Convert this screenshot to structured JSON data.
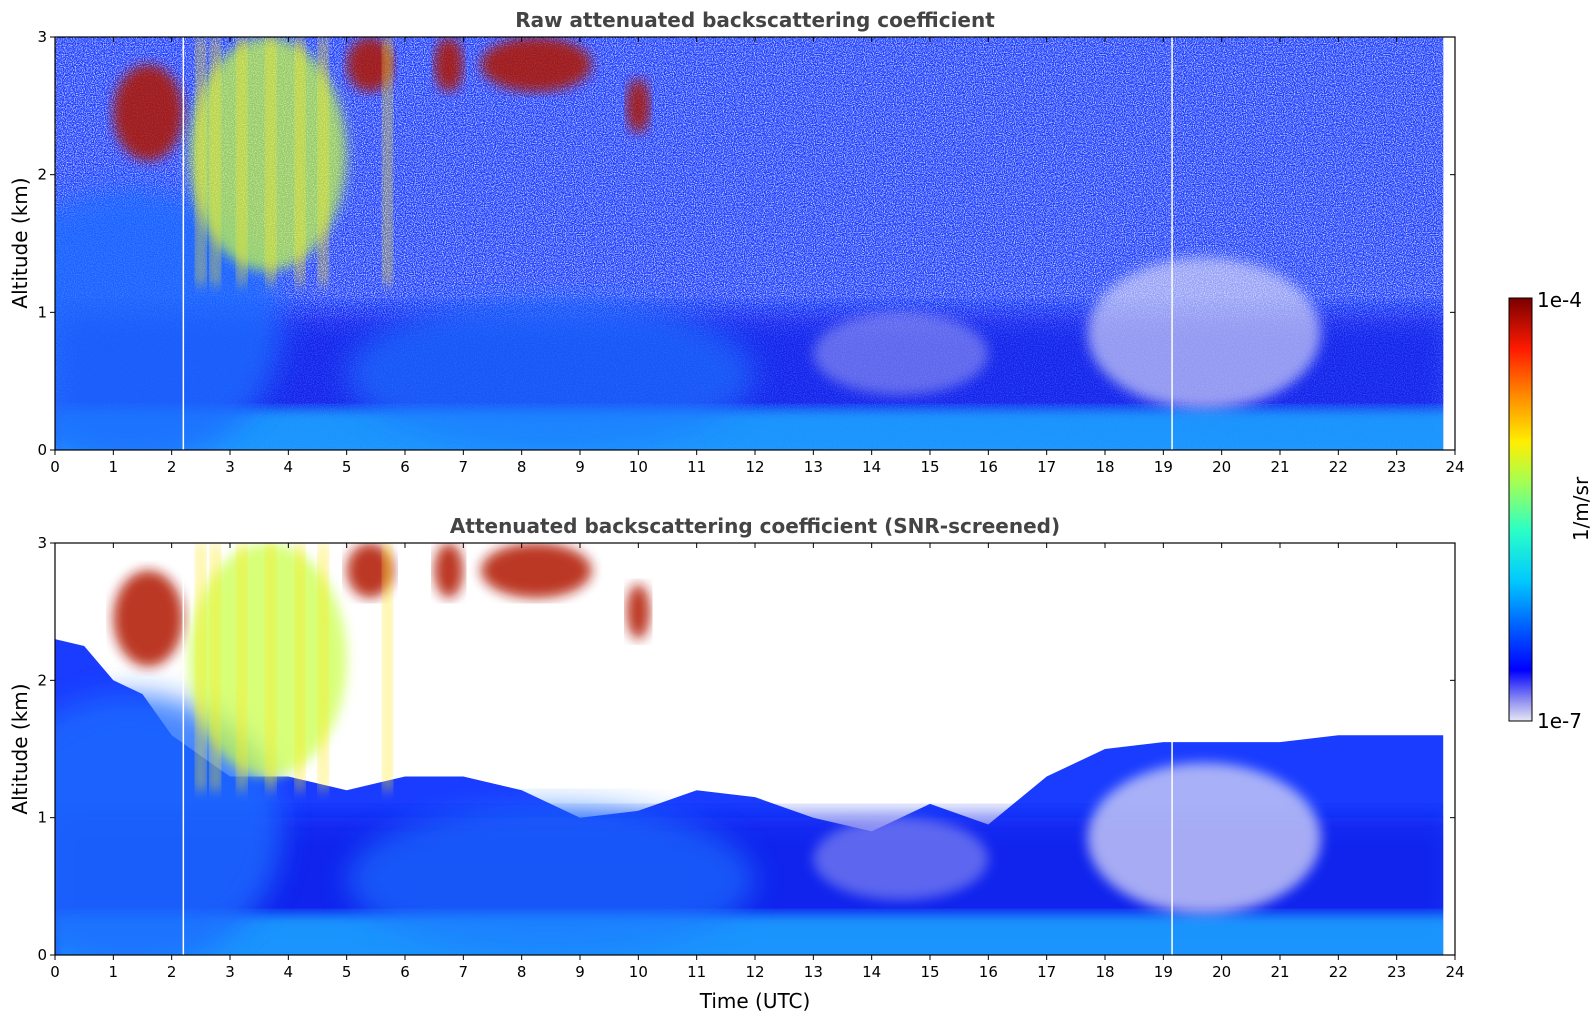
{
  "chart_data": [
    {
      "type": "heatmap",
      "title": "Raw attenuated backscattering coefficient",
      "xlabel": "",
      "ylabel": "Altitude (km)",
      "xlim": [
        0,
        24
      ],
      "ylim": [
        0,
        3
      ],
      "xticks": [
        "0",
        "1",
        "2",
        "3",
        "4",
        "5",
        "6",
        "7",
        "8",
        "9",
        "10",
        "11",
        "12",
        "13",
        "14",
        "15",
        "16",
        "17",
        "18",
        "19",
        "20",
        "21",
        "22",
        "23",
        "24"
      ],
      "yticks": [
        "0",
        "1",
        "2",
        "3"
      ],
      "screened": false,
      "cloud_features": [
        {
          "t0": 1.0,
          "t1": 2.2,
          "z0": 2.1,
          "z1": 2.8,
          "level": "high"
        },
        {
          "t0": 2.3,
          "t1": 5.0,
          "z0": 1.3,
          "z1": 3.0,
          "level": "medium"
        },
        {
          "t0": 5.0,
          "t1": 5.8,
          "z0": 2.6,
          "z1": 3.0,
          "level": "high"
        },
        {
          "t0": 6.5,
          "t1": 7.0,
          "z0": 2.6,
          "z1": 3.0,
          "level": "high"
        },
        {
          "t0": 7.3,
          "t1": 9.2,
          "z0": 2.6,
          "z1": 3.0,
          "level": "high"
        },
        {
          "t0": 9.8,
          "t1": 10.2,
          "z0": 2.3,
          "z1": 2.7,
          "level": "high"
        }
      ],
      "gaps_utc": [
        2.2,
        19.15
      ]
    },
    {
      "type": "heatmap",
      "title": "Attenuated backscattering coefficient (SNR-screened)",
      "xlabel": "Time (UTC)",
      "ylabel": "Altitude (km)",
      "xlim": [
        0,
        24
      ],
      "ylim": [
        0,
        3
      ],
      "xticks": [
        "0",
        "1",
        "2",
        "3",
        "4",
        "5",
        "6",
        "7",
        "8",
        "9",
        "10",
        "11",
        "12",
        "13",
        "14",
        "15",
        "16",
        "17",
        "18",
        "19",
        "20",
        "21",
        "22",
        "23",
        "24"
      ],
      "yticks": [
        "0",
        "1",
        "2",
        "3"
      ],
      "screened": true,
      "gaps_utc": [
        2.2,
        19.15
      ]
    }
  ],
  "colorbar": {
    "label": "1/m/sr",
    "max_label": "1e-4",
    "min_label": "1e-7",
    "scale": "log",
    "colormap": "jet"
  }
}
